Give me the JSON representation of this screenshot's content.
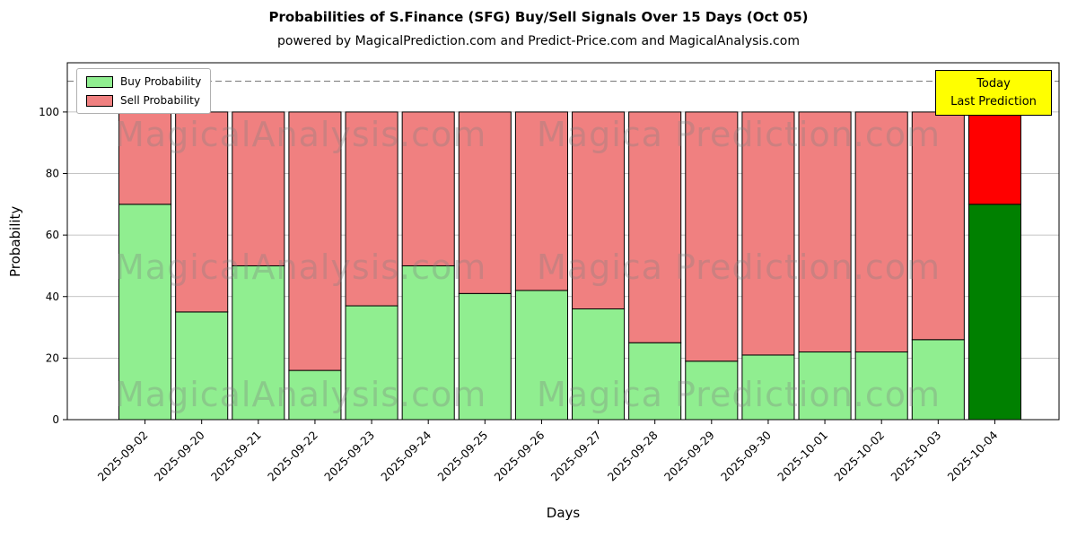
{
  "chart": {
    "title": "Probabilities of S.Finance (SFG) Buy/Sell Signals Over 15 Days (Oct 05)",
    "subtitle": "powered by MagicalPrediction.com and Predict-Price.com and MagicalAnalysis.com",
    "xlabel": "Days",
    "ylabel": "Probability"
  },
  "today_box": {
    "line1": "Today",
    "line2": "Last Prediction",
    "bg": "#ffff00"
  },
  "watermark": {
    "left": "MagicalAnalysis.com",
    "right": "Magica Prediction.com"
  },
  "chart_data": {
    "type": "bar",
    "stacked": true,
    "title": "Probabilities of S.Finance (SFG) Buy/Sell Signals Over 15 Days (Oct 05)",
    "xlabel": "Days",
    "ylabel": "Probability",
    "categories": [
      "2025-09-02",
      "2025-09-20",
      "2025-09-21",
      "2025-09-22",
      "2025-09-23",
      "2025-09-24",
      "2025-09-25",
      "2025-09-26",
      "2025-09-27",
      "2025-09-28",
      "2025-09-29",
      "2025-09-30",
      "2025-10-01",
      "2025-10-02",
      "2025-10-03",
      "2025-10-04"
    ],
    "series": [
      {
        "name": "Buy Probability",
        "color": "#90ee90",
        "values": [
          70,
          35,
          50,
          16,
          37,
          50,
          41,
          42,
          36,
          25,
          19,
          21,
          22,
          22,
          26,
          70
        ]
      },
      {
        "name": "Sell Probability",
        "color": "#f08080",
        "values": [
          30,
          65,
          50,
          84,
          63,
          50,
          59,
          58,
          64,
          75,
          81,
          79,
          78,
          78,
          74,
          30
        ]
      }
    ],
    "today_index": 15,
    "today_colors": {
      "buy": "#008000",
      "sell": "#ff0000"
    },
    "yticks": [
      0,
      20,
      40,
      60,
      80,
      100
    ],
    "ylim": [
      0,
      116
    ],
    "dashed_line_y": 110,
    "grid": true,
    "legend_position": "upper-left",
    "bar_edge_color": "#000000",
    "grid_color": "#b0b0b0",
    "dashed_line_color": "#7f7f7f"
  }
}
